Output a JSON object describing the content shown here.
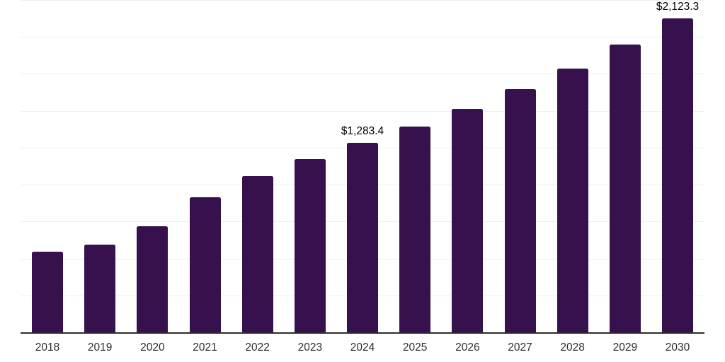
{
  "chart_data": {
    "type": "bar",
    "title": "",
    "xlabel": "",
    "ylabel": "",
    "categories": [
      "2018",
      "2019",
      "2020",
      "2021",
      "2022",
      "2023",
      "2024",
      "2025",
      "2026",
      "2027",
      "2028",
      "2029",
      "2030"
    ],
    "values": [
      547,
      594,
      720,
      914,
      1057,
      1171,
      1283.4,
      1393,
      1511,
      1648,
      1787,
      1950,
      2123.3
    ],
    "value_labels": [
      "",
      "",
      "",
      "",
      "",
      "",
      "$1,283.4",
      "",
      "",
      "",
      "",
      "",
      "$2,123.3"
    ],
    "ylim": [
      0,
      2250
    ],
    "gridline_step": 250,
    "grid": true,
    "legend": false,
    "colors": {
      "bar": "#36114E",
      "gridline": "#efefef",
      "axis_line": "#2d2d2d",
      "tick_label": "#2e2e2e",
      "value_label": "#000000",
      "background": "#ffffff"
    }
  }
}
